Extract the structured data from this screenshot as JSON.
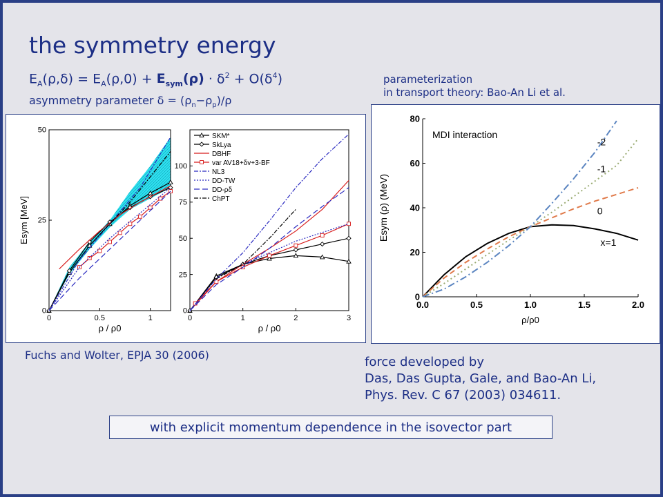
{
  "slide": {
    "title": "the symmetry energy",
    "equation": {
      "a1": "E",
      "a1sub": "A",
      "a2": "(ρ,δ) = ",
      "a3": "E",
      "a3sub": "A",
      "a4": "(ρ,0) + ",
      "bold_main": "E",
      "bold_sub": "sym",
      "bold_rest": "(ρ)",
      "a5": " · δ",
      "sup2": "2",
      "a6": " + O(δ",
      "sup4": "4",
      "a7": ")"
    },
    "asymmetry": {
      "t1": "asymmetry parameter δ = (ρ",
      "s1": "n",
      "t2": "−ρ",
      "s2": "p",
      "t3": ")/ρ"
    },
    "parameterization": {
      "line1": "parameterization",
      "line2": "in transport theory: Bao-An Li et al."
    },
    "caption_left": "Fuchs and Wolter, EPJA 30 (2006)",
    "caption_right": {
      "line1": "force developed by",
      "line2": "Das, Das Gupta, Gale, and Bao-An Li,",
      "line3": "Phys. Rev. C 67 (2003) 034611."
    },
    "boxed_note": "with explicit momentum dependence in the isovector part"
  },
  "chart_data": [
    {
      "type": "line",
      "title": "",
      "xlabel": "ρ / ρ0",
      "ylabel": "Esym [MeV]",
      "xlim": [
        0,
        1.2
      ],
      "ylim": [
        0,
        50
      ],
      "xticks": [
        0,
        0.5,
        1
      ],
      "yticks": [
        0,
        25,
        50
      ],
      "band": {
        "x": [
          0,
          0.2,
          0.4,
          0.6,
          0.8,
          1.0,
          1.2
        ],
        "lower": [
          0,
          10,
          17,
          23,
          28,
          31,
          34
        ],
        "upper": [
          0,
          12,
          19,
          25,
          33,
          40,
          48
        ]
      },
      "series": [
        {
          "key": "skm",
          "color": "#000000",
          "dash": "",
          "marker": "tri",
          "x": [
            0,
            0.2,
            0.4,
            0.6,
            0.8,
            1.0,
            1.2
          ],
          "y": [
            0,
            10.5,
            18,
            24,
            29,
            32.5,
            35.5
          ]
        },
        {
          "key": "sklya",
          "color": "#000000",
          "dash": "",
          "marker": "diamond",
          "x": [
            0,
            0.2,
            0.4,
            0.6,
            0.8,
            1.0,
            1.2
          ],
          "y": [
            0,
            11,
            19,
            24.5,
            28.5,
            31.5,
            34
          ]
        },
        {
          "key": "dbhf",
          "color": "#d81c1c",
          "dash": "",
          "marker": "",
          "x": [
            0.1,
            0.3,
            0.5,
            0.7,
            0.9,
            1.1,
            1.2
          ],
          "y": [
            11.5,
            17,
            22,
            26.5,
            30,
            33,
            34.5
          ]
        },
        {
          "key": "var",
          "color": "#d81c1c",
          "dash": "",
          "marker": "square",
          "x": [
            0.3,
            0.4,
            0.5,
            0.6,
            0.7,
            0.8,
            0.9,
            1.0,
            1.1,
            1.2
          ],
          "y": [
            12,
            14.5,
            16.5,
            19,
            21.5,
            24,
            26,
            28.5,
            31,
            33
          ]
        },
        {
          "key": "nl3",
          "color": "#2a2ac0",
          "dash": "6,2,2,2",
          "marker": "",
          "x": [
            0,
            0.3,
            0.6,
            0.9,
            1.2
          ],
          "y": [
            0,
            14,
            24,
            34,
            48
          ]
        },
        {
          "key": "ddtw",
          "color": "#2a2ac0",
          "dash": "2,2",
          "marker": "",
          "x": [
            0,
            0.3,
            0.6,
            0.9,
            1.2
          ],
          "y": [
            0,
            12,
            20,
            27,
            34
          ]
        },
        {
          "key": "ddrd",
          "color": "#2a2ac0",
          "dash": "8,4",
          "marker": "",
          "x": [
            0,
            0.3,
            0.6,
            0.9,
            1.2
          ],
          "y": [
            0,
            9,
            17,
            25,
            33
          ]
        },
        {
          "key": "chpt",
          "color": "#000000",
          "dash": "6,2,2,2",
          "marker": "",
          "x": [
            0.5,
            0.8,
            1.0,
            1.2
          ],
          "y": [
            21,
            30,
            37,
            44
          ]
        }
      ]
    },
    {
      "type": "line",
      "title": "",
      "xlabel": "ρ / ρ0",
      "ylabel": "",
      "xlim": [
        0,
        3
      ],
      "ylim": [
        0,
        125
      ],
      "xticks": [
        0,
        1,
        2,
        3
      ],
      "yticks": [
        0,
        25,
        50,
        75,
        100
      ],
      "legend": {
        "placement": "top-left",
        "entries": [
          {
            "label": "SKM*",
            "key": "skm"
          },
          {
            "label": "SkLya",
            "key": "sklya"
          },
          {
            "label": "DBHF",
            "key": "dbhf"
          },
          {
            "label": "var AV18+δv+3-BF",
            "key": "var"
          },
          {
            "label": "NL3",
            "key": "nl3"
          },
          {
            "label": "DD-TW",
            "key": "ddtw"
          },
          {
            "label": "DD-ρδ",
            "key": "ddrd"
          },
          {
            "label": "ChPT",
            "key": "chpt"
          }
        ]
      },
      "series": [
        {
          "key": "skm",
          "color": "#000000",
          "dash": "",
          "marker": "tri",
          "x": [
            0,
            0.5,
            1,
            1.5,
            2,
            2.5,
            3
          ],
          "y": [
            0,
            24,
            32,
            36,
            38,
            37,
            34
          ]
        },
        {
          "key": "sklya",
          "color": "#000000",
          "dash": "",
          "marker": "diamond",
          "x": [
            0,
            0.5,
            1,
            1.5,
            2,
            2.5,
            3
          ],
          "y": [
            0,
            23,
            32,
            38,
            42,
            46,
            50
          ]
        },
        {
          "key": "dbhf",
          "color": "#d81c1c",
          "dash": "",
          "marker": "",
          "x": [
            0,
            0.5,
            1,
            1.5,
            2,
            2.5,
            3
          ],
          "y": [
            0,
            20,
            32,
            43,
            55,
            70,
            90
          ]
        },
        {
          "key": "var",
          "color": "#d81c1c",
          "dash": "",
          "marker": "square",
          "x": [
            0.1,
            0.5,
            1,
            1.5,
            2,
            2.5,
            3
          ],
          "y": [
            5,
            20,
            30,
            38,
            45,
            52,
            60
          ]
        },
        {
          "key": "nl3",
          "color": "#2a2ac0",
          "dash": "6,2,2,2",
          "marker": "",
          "x": [
            0,
            0.5,
            1,
            1.5,
            2,
            2.5,
            3
          ],
          "y": [
            0,
            22,
            40,
            62,
            85,
            105,
            122
          ]
        },
        {
          "key": "ddtw",
          "color": "#2a2ac0",
          "dash": "2,2",
          "marker": "",
          "x": [
            0,
            0.5,
            1,
            1.5,
            2,
            2.5,
            3
          ],
          "y": [
            0,
            22,
            32,
            40,
            48,
            54,
            60
          ]
        },
        {
          "key": "ddrd",
          "color": "#2a2ac0",
          "dash": "8,4",
          "marker": "",
          "x": [
            0,
            0.5,
            1,
            1.5,
            2,
            2.5,
            3
          ],
          "y": [
            0,
            18,
            30,
            43,
            58,
            72,
            85
          ]
        },
        {
          "key": "chpt",
          "color": "#000000",
          "dash": "6,2,2,2",
          "marker": "",
          "x": [
            0.5,
            1,
            1.5,
            2
          ],
          "y": [
            22,
            32,
            50,
            70
          ]
        }
      ]
    },
    {
      "type": "line",
      "title": "",
      "annotation": "MDI interaction",
      "xlabel": "ρ/ρ0",
      "ylabel": "Esym (ρ) (MeV)",
      "xlim": [
        0,
        2
      ],
      "ylim": [
        0,
        80
      ],
      "xticks": [
        0.0,
        0.5,
        1.0,
        1.5,
        2.0
      ],
      "yticks": [
        0,
        20,
        40,
        60,
        80
      ],
      "series": [
        {
          "name": "x=1",
          "color": "#000000",
          "dash": "",
          "x": [
            0,
            0.2,
            0.4,
            0.6,
            0.8,
            1.0,
            1.2,
            1.4,
            1.6,
            1.8,
            2.0
          ],
          "y": [
            0,
            10,
            18,
            24,
            28.5,
            31.5,
            32.3,
            32,
            30.5,
            28.5,
            25.5
          ]
        },
        {
          "name": "0",
          "color": "#e07a4a",
          "dash": "8,5",
          "x": [
            0,
            0.2,
            0.4,
            0.6,
            0.8,
            1.0,
            1.2,
            1.4,
            1.6,
            1.8,
            2.0
          ],
          "y": [
            0,
            8.5,
            15.5,
            21.5,
            27,
            31.5,
            35.5,
            39.5,
            43,
            46,
            49
          ]
        },
        {
          "name": "-1",
          "color": "#9aab72",
          "dash": "2,4",
          "x": [
            0,
            0.2,
            0.4,
            0.6,
            0.8,
            1.0,
            1.2,
            1.4,
            1.6,
            1.8,
            2.0
          ],
          "y": [
            0,
            6,
            12.5,
            19,
            25.5,
            31.5,
            38,
            45,
            52,
            59,
            71
          ]
        },
        {
          "name": "-2",
          "color": "#5a84c0",
          "dash": "10,4,2,4",
          "x": [
            0,
            0.2,
            0.4,
            0.6,
            0.8,
            1.0,
            1.2,
            1.4,
            1.6,
            1.8
          ],
          "y": [
            0,
            3.5,
            9,
            15.5,
            23,
            31.5,
            42,
            53,
            65,
            79
          ]
        }
      ]
    }
  ]
}
